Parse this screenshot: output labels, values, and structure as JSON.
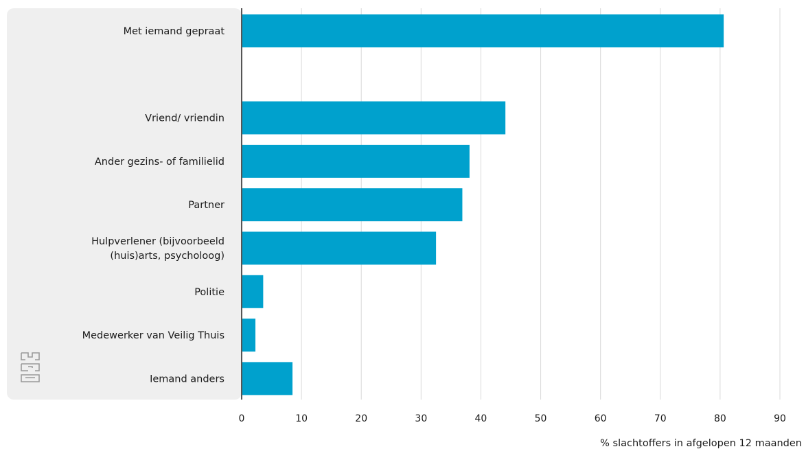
{
  "chart_data": {
    "type": "bar",
    "orientation": "horizontal",
    "categories": [
      [
        "Met iemand gepraat"
      ],
      [],
      [
        "Vriend/ vriendin"
      ],
      [
        "Ander gezins- of familielid"
      ],
      [
        "Partner"
      ],
      [
        "Hulpverlener (bijvoorbeeld",
        "(huis)arts, psycholoog)"
      ],
      [
        "Politie"
      ],
      [
        "Medewerker van Veilig Thuis"
      ],
      [
        "Iemand anders"
      ]
    ],
    "values": [
      80.6,
      null,
      44.1,
      38.1,
      36.9,
      32.5,
      3.6,
      2.3,
      8.5
    ],
    "xlabel": "% slachtoffers in afgelopen 12 maanden",
    "xlim": [
      0,
      90
    ],
    "xticks": [
      0,
      10,
      20,
      30,
      40,
      50,
      60,
      70,
      80,
      90
    ],
    "grid": true,
    "logo": "cbs-logo",
    "colors": {
      "bar": "#00a1cd",
      "label_panel": "#efefef",
      "grid": "#d9d9d9",
      "axis": "#555555",
      "logo": "#9a9a9a"
    }
  }
}
